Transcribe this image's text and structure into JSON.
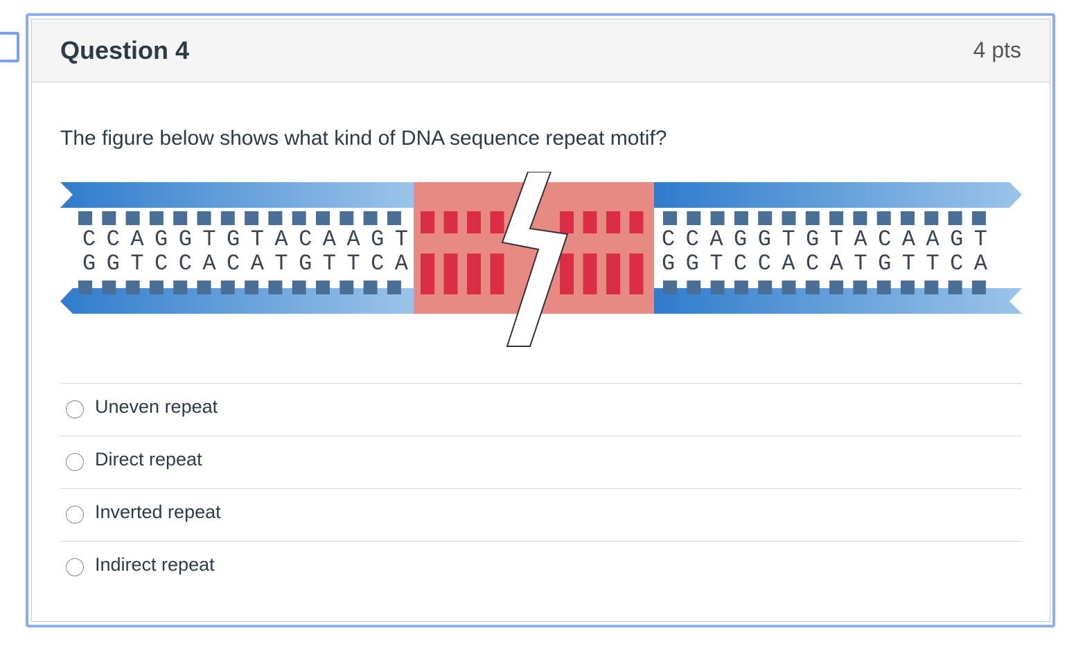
{
  "header": {
    "title": "Question 4",
    "points": "4 pts"
  },
  "question": "The figure below shows what kind of DNA sequence repeat motif?",
  "figure": {
    "segments": [
      {
        "top": "CCAGGTGTACAAGT",
        "bottom": "GGTCCACATGTTCA"
      },
      {
        "top": "CCAGGTGTACAAGT",
        "bottom": "GGTCCACATGTTCA"
      }
    ]
  },
  "answers": [
    "Uneven repeat",
    "Direct repeat",
    "Inverted repeat",
    "Indirect repeat"
  ]
}
